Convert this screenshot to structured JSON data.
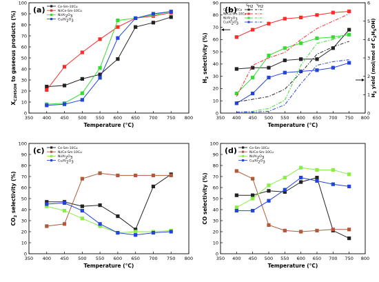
{
  "chart_data": [
    {
      "panel": "a",
      "type": "line",
      "panel_label": "(a)",
      "xlabel": "Temperature (°C)",
      "ylabel_parts": [
        "X",
        "C2H5OH",
        " to gaseous products (%)"
      ],
      "x": [
        400,
        450,
        500,
        550,
        600,
        650,
        700,
        750
      ],
      "xlim": [
        350,
        800
      ],
      "xticks": [
        350,
        400,
        450,
        500,
        550,
        600,
        650,
        700,
        750,
        800
      ],
      "ylim": [
        0,
        100
      ],
      "yticks": [
        0,
        10,
        20,
        30,
        40,
        50,
        60,
        70,
        80,
        90,
        100
      ],
      "grid": false,
      "legend_position": "top-left",
      "series": [
        {
          "name": "Ce-Sm-10Cu",
          "color": "#222222",
          "marker": "square",
          "values": [
            24,
            25,
            31,
            35,
            49,
            78,
            82,
            87
          ]
        },
        {
          "name": "Ni/Ce-Sm-10Cu",
          "color": "#ff2a2a",
          "marker": "square",
          "values": [
            21,
            42,
            55,
            67,
            78,
            86,
            88,
            91
          ]
        },
        {
          "name": "Ni/Al2O3",
          "color": "#33dd33",
          "marker": "square",
          "values": [
            8,
            9,
            18,
            41,
            84,
            86,
            89,
            92
          ]
        },
        {
          "name": "Cu/Al2O3",
          "color": "#2244dd",
          "marker": "square",
          "values": [
            7,
            8,
            12,
            32,
            68,
            86,
            90,
            92
          ]
        }
      ]
    },
    {
      "panel": "b",
      "type": "line",
      "panel_label": "(b)",
      "xlabel": "Temperature (°C)",
      "ylabel_parts": [
        "H",
        "2",
        " selectivity (%)"
      ],
      "y2label_parts": [
        "H",
        "2",
        " yield (mol/mol of C",
        "2",
        "H",
        "5",
        "OH)"
      ],
      "x": [
        400,
        450,
        500,
        550,
        600,
        650,
        700,
        750
      ],
      "xlim": [
        350,
        800
      ],
      "xticks": [
        350,
        400,
        450,
        500,
        550,
        600,
        650,
        700,
        750,
        800
      ],
      "ylim": [
        0,
        90
      ],
      "yticks": [
        0,
        10,
        20,
        30,
        40,
        50,
        60,
        70,
        80,
        90
      ],
      "y2lim": [
        0,
        6
      ],
      "y2ticks": [
        0,
        1,
        2,
        3,
        4,
        5,
        6
      ],
      "grid": false,
      "legend_position": "top-left",
      "legend_headers": [
        "SH2",
        "YH2"
      ],
      "selectivity_series": [
        {
          "name": "Ce-Sm-10Cu",
          "color": "#222222",
          "values": [
            36,
            37,
            37,
            43,
            44,
            44,
            53,
            68
          ]
        },
        {
          "name": "Ni/Ce-Sm-10Cu",
          "color": "#ff2a2a",
          "values": [
            62,
            68,
            73,
            77,
            78,
            80,
            82,
            83
          ]
        },
        {
          "name": "Ni/Al2O3",
          "color": "#33dd33",
          "values": [
            16,
            29,
            47,
            53,
            57,
            61,
            62,
            64
          ]
        },
        {
          "name": "Cu/Al2O3",
          "color": "#2244dd",
          "values": [
            8,
            16,
            29,
            33,
            34,
            35,
            37,
            41
          ]
        }
      ],
      "yield_series": [
        {
          "name": "Ce-Sm-10Cu",
          "color": "#222222",
          "values": [
            0.6,
            0.75,
            0.9,
            1.3,
            2.2,
            3.2,
            3.6,
            3.9
          ]
        },
        {
          "name": "Ni/Ce-Sm-10Cu",
          "color": "#ff2a2a",
          "values": [
            0.9,
            2.6,
            3.0,
            3.3,
            4.0,
            4.6,
            5.0,
            5.4
          ]
        },
        {
          "name": "Ni/Al2O3",
          "color": "#33dd33",
          "values": [
            0.05,
            0.1,
            0.25,
            0.7,
            2.6,
            3.8,
            4.0,
            4.3
          ]
        },
        {
          "name": "Cu/Al2O3",
          "color": "#2244dd",
          "values": [
            0.05,
            0.05,
            0.1,
            0.45,
            1.6,
            2.6,
            2.8,
            2.9
          ]
        }
      ]
    },
    {
      "panel": "c",
      "type": "line",
      "panel_label": "(c)",
      "xlabel": "Temperature (°C)",
      "ylabel_parts": [
        "CO",
        "2",
        " selectivity (%)"
      ],
      "x": [
        400,
        450,
        500,
        550,
        600,
        650,
        700,
        750
      ],
      "xlim": [
        350,
        800
      ],
      "xticks": [
        350,
        400,
        450,
        500,
        550,
        600,
        650,
        700,
        750,
        800
      ],
      "ylim": [
        0,
        100
      ],
      "yticks": [
        0,
        10,
        20,
        30,
        40,
        50,
        60,
        70,
        80,
        90,
        100
      ],
      "grid": false,
      "legend_position": "top-left",
      "series": [
        {
          "name": "Ce-Sm-10Cu",
          "color": "#222222",
          "marker": "square",
          "values": [
            47,
            47,
            43,
            44,
            34,
            22,
            61,
            72
          ]
        },
        {
          "name": "Ni/Ce-Sm-10Cu",
          "color": "#b05a3a",
          "marker": "square",
          "values": [
            25,
            27,
            68,
            73,
            71,
            71,
            71,
            71
          ]
        },
        {
          "name": "Ni/Al2O3",
          "color": "#88ee44",
          "marker": "square",
          "values": [
            43,
            39,
            32,
            25,
            19,
            20,
            20,
            21
          ]
        },
        {
          "name": "Cu/Al2O3",
          "color": "#2244dd",
          "marker": "square",
          "values": [
            45,
            46,
            39,
            27,
            19,
            17,
            19,
            20
          ]
        }
      ]
    },
    {
      "panel": "d",
      "type": "line",
      "panel_label": "(d)",
      "xlabel": "Temperature (°C)",
      "ylabel_parts": [
        "CO selectivity (%)"
      ],
      "x": [
        400,
        450,
        500,
        550,
        600,
        650,
        700,
        750
      ],
      "xlim": [
        350,
        800
      ],
      "xticks": [
        350,
        400,
        450,
        500,
        550,
        600,
        650,
        700,
        750,
        800
      ],
      "ylim": [
        0,
        100
      ],
      "yticks": [
        0,
        10,
        20,
        30,
        40,
        50,
        60,
        70,
        80,
        90,
        100
      ],
      "grid": false,
      "legend_position": "top-left",
      "series": [
        {
          "name": "Ce-Sm-10Cu",
          "color": "#222222",
          "marker": "square",
          "values": [
            53,
            53,
            57,
            56,
            65,
            69,
            21,
            14
          ]
        },
        {
          "name": "Ni/Ce-Sm-10Cu",
          "color": "#b05a3a",
          "marker": "square",
          "values": [
            75,
            68,
            26,
            21,
            20,
            21,
            22,
            22
          ]
        },
        {
          "name": "Ni/Al2O3",
          "color": "#88ee44",
          "marker": "square",
          "values": [
            42,
            50,
            62,
            69,
            78,
            76,
            76,
            72
          ]
        },
        {
          "name": "Cu/Al2O3",
          "color": "#2244dd",
          "marker": "square",
          "values": [
            39,
            39,
            48,
            58,
            69,
            66,
            63,
            61
          ]
        }
      ]
    }
  ]
}
